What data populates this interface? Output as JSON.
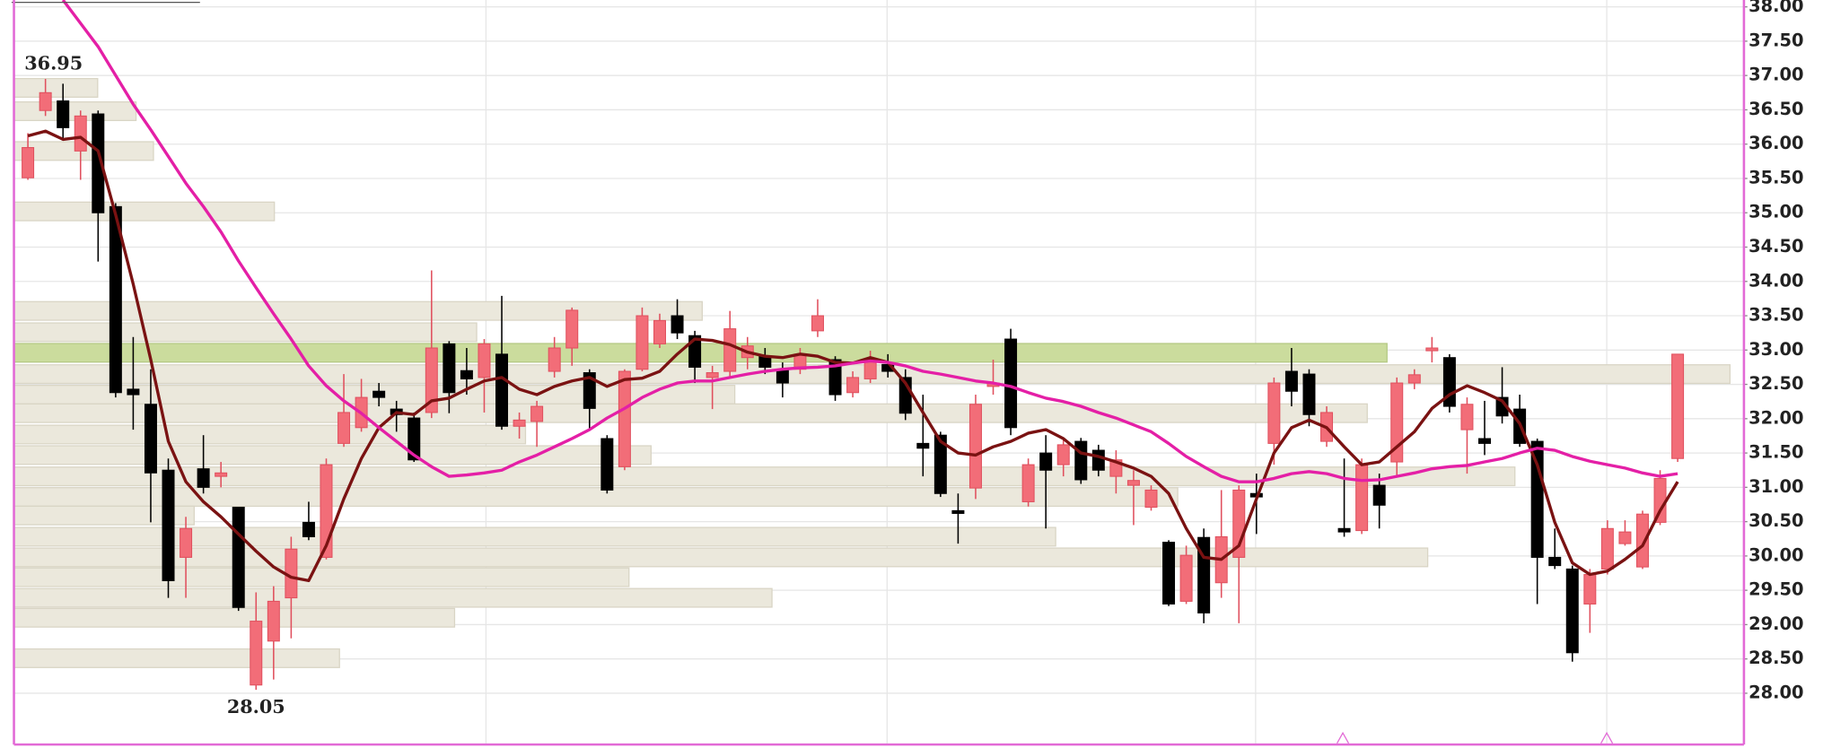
{
  "chart_data": {
    "type": "candlestick",
    "ylim": [
      27.27,
      38.1
    ],
    "yticks": [
      {
        "value": 28,
        "label": "28.00"
      },
      {
        "value": 28.5,
        "label": "28.50"
      },
      {
        "value": 29,
        "label": "29.00"
      },
      {
        "value": 29.5,
        "label": "29.50"
      },
      {
        "value": 30,
        "label": "30.00"
      },
      {
        "value": 30.5,
        "label": "30.50"
      },
      {
        "value": 31,
        "label": "31.00"
      },
      {
        "value": 31.5,
        "label": "31.50"
      },
      {
        "value": 32,
        "label": "32.00"
      },
      {
        "value": 32.5,
        "label": "32.50"
      },
      {
        "value": 33,
        "label": "33.00"
      },
      {
        "value": 33.5,
        "label": "33.50"
      },
      {
        "value": 34,
        "label": "34.00"
      },
      {
        "value": 34.5,
        "label": "34.50"
      },
      {
        "value": 35,
        "label": "35.00"
      },
      {
        "value": 35.5,
        "label": "35.50"
      },
      {
        "value": 36,
        "label": "36.00"
      },
      {
        "value": 36.5,
        "label": "36.50"
      },
      {
        "value": 37,
        "label": "37.00"
      },
      {
        "value": 37.5,
        "label": "37.50"
      },
      {
        "value": 38,
        "label": "38.00"
      }
    ],
    "grid": true,
    "up_color": "#f26d78",
    "down_color": "#000000",
    "high_label": "36.95",
    "low_label": "28.05",
    "open": [
      35.51,
      36.49,
      36.63,
      35.9,
      36.44,
      35.09,
      32.43,
      32.21,
      31.25,
      29.98,
      31.27,
      31.16,
      30.71,
      28.12,
      28.76,
      29.39,
      30.49,
      29.98,
      31.64,
      31.87,
      32.4,
      32.14,
      32.01,
      32.09,
      33.09,
      32.7,
      32.6,
      32.94,
      31.89,
      31.96,
      32.69,
      33.03,
      32.67,
      31.71,
      31.3,
      32.72,
      33.09,
      33.5,
      33.21,
      32.6,
      32.69,
      32.89,
      32.91,
      32.72,
      32.72,
      33.28,
      32.86,
      32.38,
      32.58,
      32.79,
      32.6,
      31.64,
      31.76,
      30.66,
      30.99,
      32.47,
      33.16,
      30.79,
      31.5,
      31.33,
      31.67,
      31.54,
      31.16,
      31.03,
      30.71,
      30.2,
      29.34,
      30.27,
      29.61,
      29.98,
      30.91,
      31.64,
      32.69,
      32.65,
      31.67,
      30.4,
      30.37,
      31.03,
      31.37,
      32.52,
      32.99,
      32.89,
      31.84,
      31.71,
      32.31,
      32.14,
      31.67,
      29.98,
      29.81,
      29.3,
      29.81,
      30.18,
      29.84,
      30.49,
      31.42
    ],
    "high": [
      36.16,
      36.95,
      36.88,
      36.49,
      36.49,
      35.14,
      33.19,
      32.72,
      31.42,
      30.57,
      31.76,
      31.37,
      30.71,
      29.47,
      29.56,
      30.28,
      30.79,
      31.42,
      32.65,
      32.58,
      32.52,
      32.26,
      32.09,
      34.16,
      33.13,
      33.03,
      33.16,
      33.79,
      32.09,
      32.26,
      33.19,
      33.62,
      32.72,
      31.76,
      32.72,
      33.62,
      33.53,
      33.74,
      33.28,
      32.77,
      33.57,
      33.19,
      33.03,
      32.82,
      33.03,
      33.74,
      32.91,
      32.69,
      32.99,
      32.94,
      32.72,
      32.35,
      31.81,
      30.91,
      32.35,
      32.86,
      33.31,
      31.42,
      31.76,
      31.71,
      31.72,
      31.62,
      31.54,
      31.25,
      31.03,
      30.23,
      30.15,
      30.4,
      30.96,
      31.03,
      31.2,
      32.6,
      33.03,
      32.72,
      32.18,
      31.42,
      31.42,
      31.2,
      32.6,
      32.72,
      33.19,
      32.94,
      32.31,
      32.26,
      32.75,
      32.35,
      31.71,
      30.4,
      29.86,
      29.81,
      30.52,
      30.52,
      30.66,
      31.25,
      32.94
    ],
    "low": [
      35.48,
      36.41,
      36.07,
      35.48,
      34.29,
      32.31,
      31.84,
      30.49,
      29.39,
      29.39,
      30.91,
      31.0,
      29.2,
      28.05,
      28.2,
      28.8,
      30.23,
      29.95,
      31.59,
      31.81,
      32.18,
      31.81,
      31.37,
      32.01,
      32.08,
      32.35,
      32.09,
      31.84,
      31.71,
      31.59,
      32.6,
      32.77,
      31.84,
      30.91,
      31.25,
      32.69,
      33.03,
      33.16,
      32.52,
      32.14,
      32.6,
      32.72,
      32.65,
      32.31,
      32.65,
      33.19,
      32.26,
      32.31,
      32.52,
      32.6,
      31.98,
      31.16,
      30.86,
      30.18,
      30.83,
      32.35,
      31.76,
      30.72,
      30.4,
      31.16,
      31.05,
      31.16,
      30.91,
      30.45,
      30.66,
      29.27,
      29.3,
      29.02,
      29.39,
      29.02,
      30.32,
      31.33,
      32.18,
      31.89,
      31.59,
      30.28,
      30.32,
      30.4,
      31.16,
      32.43,
      32.82,
      32.09,
      31.2,
      31.47,
      31.93,
      31.59,
      29.3,
      29.81,
      28.46,
      28.88,
      29.73,
      30.15,
      29.81,
      30.45,
      31.37
    ],
    "close": [
      35.95,
      36.75,
      36.24,
      36.41,
      35.0,
      32.38,
      32.35,
      31.21,
      29.64,
      30.4,
      31.0,
      31.21,
      29.25,
      29.05,
      29.34,
      30.1,
      30.28,
      31.33,
      32.09,
      32.31,
      32.31,
      32.06,
      31.4,
      33.03,
      32.38,
      32.58,
      33.09,
      31.89,
      31.98,
      32.18,
      33.03,
      33.58,
      32.15,
      30.96,
      32.69,
      33.5,
      33.43,
      33.25,
      32.75,
      32.67,
      33.31,
      33.06,
      32.75,
      32.52,
      32.94,
      33.5,
      32.35,
      32.6,
      32.86,
      32.69,
      32.08,
      31.57,
      30.91,
      30.62,
      32.21,
      32.52,
      31.87,
      31.33,
      31.25,
      31.62,
      31.11,
      31.25,
      31.4,
      31.1,
      30.96,
      29.3,
      30.01,
      29.17,
      30.28,
      30.96,
      30.86,
      32.52,
      32.4,
      32.06,
      32.09,
      30.35,
      31.33,
      30.74,
      32.52,
      32.64,
      33.03,
      32.18,
      32.21,
      31.64,
      32.04,
      31.64,
      29.98,
      29.86,
      28.59,
      29.73,
      30.4,
      30.35,
      30.61,
      31.13,
      32.94
    ],
    "series": [
      {
        "color": "#7a1212",
        "values": [
          36.12,
          36.19,
          36.07,
          36.1,
          35.9,
          34.97,
          33.96,
          32.86,
          31.67,
          31.08,
          30.79,
          30.57,
          30.32,
          30.07,
          29.84,
          29.69,
          29.64,
          30.15,
          30.83,
          31.42,
          31.87,
          32.09,
          32.06,
          32.26,
          32.3,
          32.43,
          32.55,
          32.6,
          32.43,
          32.35,
          32.47,
          32.55,
          32.6,
          32.47,
          32.57,
          32.59,
          32.69,
          32.94,
          33.16,
          33.14,
          33.08,
          32.97,
          32.91,
          32.89,
          32.94,
          32.91,
          32.82,
          32.81,
          32.89,
          32.82,
          32.52,
          32.09,
          31.67,
          31.5,
          31.47,
          31.59,
          31.67,
          31.79,
          31.84,
          31.71,
          31.5,
          31.45,
          31.37,
          31.28,
          31.16,
          30.91,
          30.4,
          29.98,
          29.95,
          30.15,
          30.83,
          31.5,
          31.87,
          31.98,
          31.87,
          31.59,
          31.33,
          31.37,
          31.59,
          31.81,
          32.15,
          32.35,
          32.48,
          32.38,
          32.26,
          31.93,
          31.33,
          30.49,
          29.9,
          29.73,
          29.78,
          29.95,
          30.15,
          30.66,
          31.08
        ]
      },
      {
        "color": "#e41fa6",
        "values": [
          null,
          null,
          38.1,
          37.76,
          37.42,
          37.0,
          36.58,
          36.21,
          35.82,
          35.43,
          35.09,
          34.72,
          34.3,
          33.91,
          33.53,
          33.16,
          32.77,
          32.48,
          32.26,
          32.08,
          31.87,
          31.67,
          31.47,
          31.3,
          31.16,
          31.18,
          31.21,
          31.25,
          31.37,
          31.47,
          31.59,
          31.71,
          31.84,
          32.01,
          32.15,
          32.31,
          32.43,
          32.52,
          32.55,
          32.55,
          32.6,
          32.65,
          32.69,
          32.72,
          32.74,
          32.75,
          32.77,
          32.81,
          32.84,
          32.82,
          32.77,
          32.69,
          32.65,
          32.6,
          32.55,
          32.52,
          32.47,
          32.38,
          32.3,
          32.25,
          32.18,
          32.09,
          32.01,
          31.91,
          31.81,
          31.64,
          31.45,
          31.3,
          31.16,
          31.08,
          31.08,
          31.13,
          31.2,
          31.23,
          31.2,
          31.13,
          31.1,
          31.11,
          31.16,
          31.21,
          31.27,
          31.3,
          31.32,
          31.37,
          31.42,
          31.5,
          31.57,
          31.54,
          31.45,
          31.38,
          31.33,
          31.28,
          31.21,
          31.16,
          31.2
        ]
      }
    ],
    "volume_profile": {
      "color": "#ebe8dc",
      "highlight_color": "#cbdc9d",
      "highlight": 6,
      "xlim": [
        0,
        1488
      ],
      "prices": [
        36.82,
        36.48,
        35.9,
        35.02,
        33.57,
        33.26,
        32.96,
        32.65,
        32.35,
        32.08,
        31.77,
        31.47,
        31.16,
        30.86,
        30.59,
        30.28,
        29.98,
        29.69,
        29.39,
        29.1,
        28.51
      ],
      "values": [
        72,
        105,
        120,
        224,
        592,
        398,
        1181,
        1476,
        620,
        1164,
        440,
        548,
        1291,
        1001,
        155,
        896,
        1216,
        529,
        652,
        379,
        280
      ]
    }
  }
}
